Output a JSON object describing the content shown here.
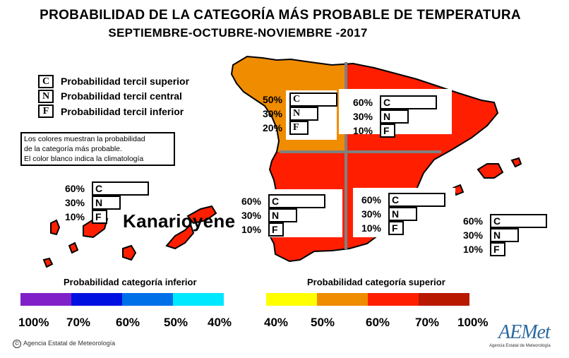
{
  "title": {
    "line1": "PROBABILIDAD DE LA CATEGORÍA MÁS PROBABLE DE TEMPERATURA",
    "line2": "SEPTIEMBRE-OCTUBRE-NOVIEMBRE -2017"
  },
  "legend": {
    "items": [
      {
        "letter": "C",
        "text": "Probabilidad  tercil superior"
      },
      {
        "letter": "N",
        "text": "Probabilidad  tercil central"
      },
      {
        "letter": "F",
        "text": "Probabilidad  tercil inferior"
      }
    ]
  },
  "note": {
    "lines": [
      "Los colores muestran la probabilidad",
      "de la categoría más probable.",
      "El color blanco indica la climatología"
    ]
  },
  "regions": [
    {
      "id": "northwest",
      "color": "#f08c00",
      "C": {
        "pct": "50%",
        "value": 50
      },
      "N": {
        "pct": "30%",
        "value": 30
      },
      "F": {
        "pct": "20%",
        "value": 20
      }
    },
    {
      "id": "northeast",
      "color": "#ff1f00",
      "C": {
        "pct": "60%",
        "value": 60
      },
      "N": {
        "pct": "30%",
        "value": 30
      },
      "F": {
        "pct": "10%",
        "value": 10
      }
    },
    {
      "id": "southwest",
      "color": "#ff1f00",
      "C": {
        "pct": "60%",
        "value": 60
      },
      "N": {
        "pct": "30%",
        "value": 30
      },
      "F": {
        "pct": "10%",
        "value": 10
      }
    },
    {
      "id": "southeast",
      "color": "#ff1f00",
      "C": {
        "pct": "60%",
        "value": 60
      },
      "N": {
        "pct": "30%",
        "value": 30
      },
      "F": {
        "pct": "10%",
        "value": 10
      }
    },
    {
      "id": "canarias",
      "color": "#ff1f00",
      "C": {
        "pct": "60%",
        "value": 60
      },
      "N": {
        "pct": "30%",
        "value": 30
      },
      "F": {
        "pct": "10%",
        "value": 10
      }
    },
    {
      "id": "baleares",
      "color": "#ff1f00",
      "C": {
        "pct": "60%",
        "value": 60
      },
      "N": {
        "pct": "30%",
        "value": 30
      },
      "F": {
        "pct": "10%",
        "value": 10
      }
    }
  ],
  "canarias_label": "Kanarioyene",
  "scale_lower": {
    "title": "Probabilidad categoría inferior",
    "colors": [
      "#8020c8",
      "#0010e0",
      "#0070e8",
      "#00e8ff"
    ],
    "labels": [
      "100%",
      "70%",
      "60%",
      "50%",
      "40%"
    ]
  },
  "scale_upper": {
    "title": "Probabilidad categoría superior",
    "colors": [
      "#ffff00",
      "#f08c00",
      "#ff1f00",
      "#b81800"
    ],
    "labels": [
      "40%",
      "50%",
      "60%",
      "70%",
      "100%"
    ]
  },
  "footer": {
    "copyright": "©",
    "agency": "Agencia Estatal de Meteorología",
    "logo": "AEMet",
    "logo_sub": "Agencia Estatal de Meteorología"
  }
}
